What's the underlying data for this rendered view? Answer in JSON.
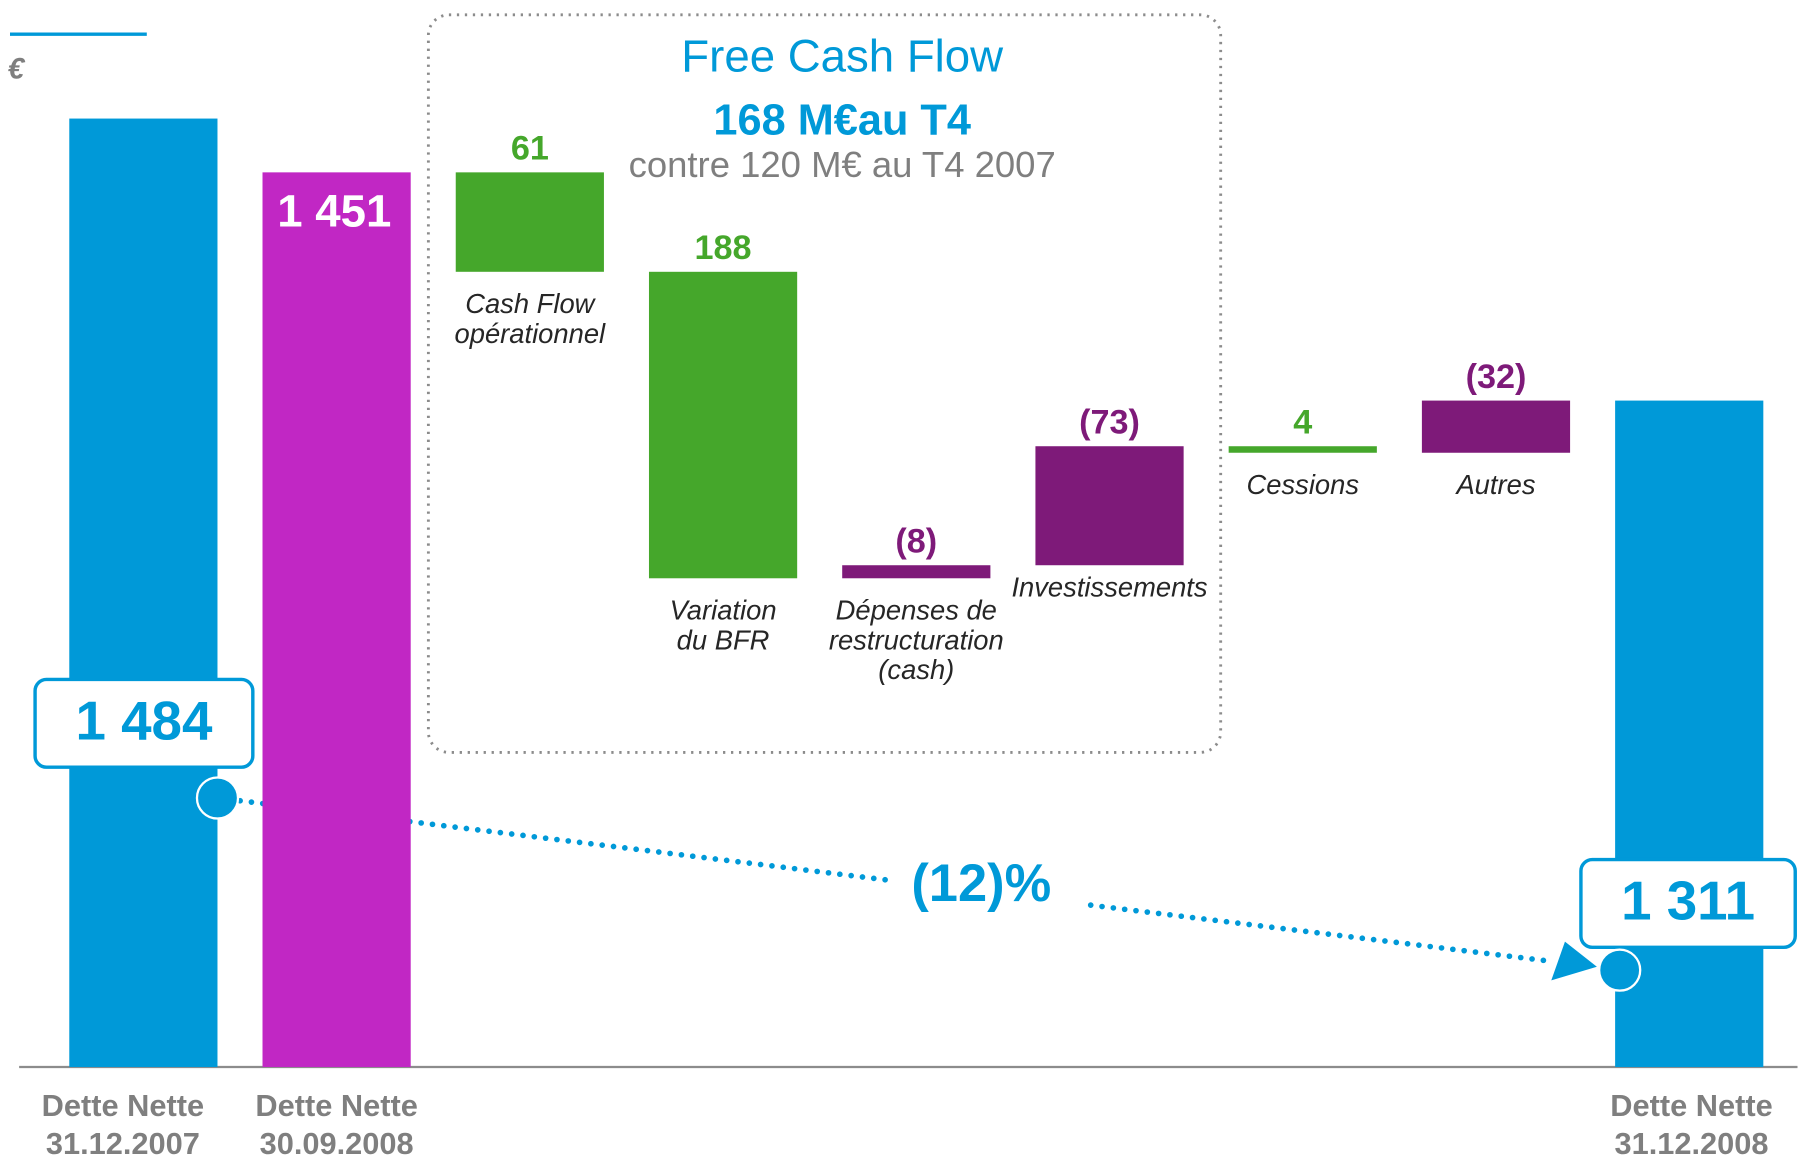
{
  "chart_data": {
    "type": "waterfall",
    "unit": "€",
    "title": "Free Cash Flow",
    "subtitle": "168 M€au T4",
    "note": "contre 120 M€ au T4 2007",
    "change_label": "(12)%",
    "categories": [
      [
        "Dette Nette",
        "31.12.2007"
      ],
      [
        "Dette Nette",
        "30.09.2008"
      ],
      [
        "Cash Flow",
        "opérationnel"
      ],
      [
        "Variation",
        "du BFR"
      ],
      [
        "Dépenses de",
        "restructuration",
        "(cash)"
      ],
      [
        "Investissements"
      ],
      [
        "Cessions"
      ],
      [
        "Autres"
      ],
      [
        "Dette Nette",
        "31.12.2008"
      ]
    ],
    "measure": [
      "total",
      "total",
      "relative",
      "relative",
      "relative",
      "relative",
      "relative",
      "relative",
      "total"
    ],
    "values": [
      1484,
      1451,
      61,
      188,
      -8,
      -73,
      4,
      -32,
      1311
    ],
    "value_labels": [
      "1 484",
      "1 451",
      "61",
      "188",
      "(8)",
      "(73)",
      "4",
      "(32)",
      "1 311"
    ],
    "colors": [
      "#0099d8",
      "#c127c4",
      "#45a72b",
      "#45a72b",
      "#7e1a79",
      "#7e1a79",
      "#45a72b",
      "#7e1a79",
      "#0099d8"
    ]
  }
}
